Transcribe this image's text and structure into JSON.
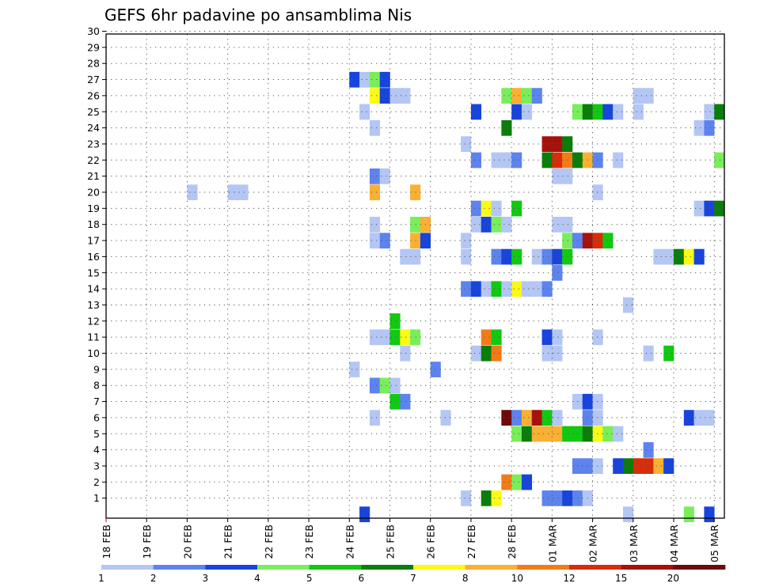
{
  "chart_data": {
    "type": "heatmap",
    "title": "GEFS 6hr padavine po ansamblima Nis",
    "xlabel": "",
    "ylabel": "",
    "x_ticks": [
      "18 FEB",
      "19 FEB",
      "20 FEB",
      "21 FEB",
      "22 FEB",
      "23 FEB",
      "24 FEB",
      "25 FEB",
      "26 FEB",
      "27 FEB",
      "28 FEB",
      "01 MAR",
      "02 MAR",
      "03 MAR",
      "04 MAR",
      "05 MAR"
    ],
    "y_ticks": [
      "1",
      "2",
      "3",
      "4",
      "5",
      "6",
      "7",
      "8",
      "9",
      "10",
      "11",
      "12",
      "13",
      "14",
      "15",
      "16",
      "17",
      "18",
      "19",
      "20",
      "21",
      "22",
      "23",
      "24",
      "25",
      "26",
      "27",
      "28",
      "29",
      "30"
    ],
    "x_unit": "6-hour step",
    "grid": true,
    "legend": {
      "placement": "bottom",
      "thresholds": [
        "1",
        "2",
        "3",
        "4",
        "5",
        "6",
        "7",
        "8",
        "10",
        "12",
        "15",
        "20"
      ],
      "colors": [
        "#b4c6f4",
        "#5d83ee",
        "#1844dc",
        "#79ee5a",
        "#12c812",
        "#0b7d0b",
        "#fafa16",
        "#f9b033",
        "#f27b18",
        "#d62e0a",
        "#a6120a",
        "#6e0a0a"
      ]
    },
    "color_by_class": {
      "1": "#b4c6f4",
      "2": "#5d83ee",
      "3": "#1844dc",
      "4": "#79ee5a",
      "5": "#12c812",
      "6": "#0b7d0b",
      "7": "#fafa16",
      "8": "#f9b033",
      "9": "#f27b18",
      "10": "#d62e0a",
      "11": "#a6120a",
      "12": "#6e0a0a"
    },
    "cells": [
      [
        0,
        25,
        3
      ],
      [
        0,
        51,
        1
      ],
      [
        0,
        57,
        4
      ],
      [
        0,
        59,
        3
      ],
      [
        1,
        35,
        1
      ],
      [
        1,
        37,
        6
      ],
      [
        1,
        38,
        7
      ],
      [
        1,
        43,
        2
      ],
      [
        1,
        44,
        2
      ],
      [
        1,
        45,
        3
      ],
      [
        1,
        46,
        2
      ],
      [
        1,
        47,
        1
      ],
      [
        2,
        39,
        9
      ],
      [
        2,
        40,
        4
      ],
      [
        2,
        41,
        3
      ],
      [
        3,
        46,
        2
      ],
      [
        3,
        47,
        2
      ],
      [
        3,
        48,
        1
      ],
      [
        3,
        50,
        3
      ],
      [
        3,
        51,
        6
      ],
      [
        3,
        52,
        10
      ],
      [
        3,
        53,
        10
      ],
      [
        3,
        54,
        8
      ],
      [
        3,
        55,
        3
      ],
      [
        4,
        53,
        2
      ],
      [
        5,
        40,
        4
      ],
      [
        5,
        41,
        6
      ],
      [
        5,
        42,
        8
      ],
      [
        5,
        43,
        8
      ],
      [
        5,
        44,
        8
      ],
      [
        5,
        45,
        5
      ],
      [
        5,
        46,
        5
      ],
      [
        5,
        47,
        6
      ],
      [
        5,
        48,
        7
      ],
      [
        5,
        49,
        4
      ],
      [
        5,
        50,
        1
      ],
      [
        6,
        26,
        1
      ],
      [
        6,
        33,
        1
      ],
      [
        6,
        39,
        12
      ],
      [
        6,
        40,
        2
      ],
      [
        6,
        41,
        8
      ],
      [
        6,
        42,
        11
      ],
      [
        6,
        43,
        5
      ],
      [
        6,
        44,
        1
      ],
      [
        6,
        47,
        2
      ],
      [
        6,
        48,
        1
      ],
      [
        6,
        57,
        3
      ],
      [
        6,
        58,
        1
      ],
      [
        6,
        59,
        1
      ],
      [
        7,
        28,
        5
      ],
      [
        7,
        29,
        2
      ],
      [
        7,
        46,
        1
      ],
      [
        7,
        47,
        3
      ],
      [
        7,
        48,
        1
      ],
      [
        8,
        26,
        2
      ],
      [
        8,
        27,
        4
      ],
      [
        8,
        28,
        1
      ],
      [
        9,
        24,
        1
      ],
      [
        9,
        32,
        2
      ],
      [
        10,
        29,
        1
      ],
      [
        10,
        36,
        1
      ],
      [
        10,
        37,
        6
      ],
      [
        10,
        38,
        9
      ],
      [
        10,
        43,
        1
      ],
      [
        10,
        44,
        1
      ],
      [
        10,
        53,
        1
      ],
      [
        10,
        55,
        5
      ],
      [
        11,
        26,
        1
      ],
      [
        11,
        27,
        1
      ],
      [
        11,
        28,
        5
      ],
      [
        11,
        29,
        7
      ],
      [
        11,
        30,
        4
      ],
      [
        11,
        37,
        9
      ],
      [
        11,
        38,
        5
      ],
      [
        11,
        43,
        3
      ],
      [
        11,
        44,
        1
      ],
      [
        11,
        48,
        1
      ],
      [
        12,
        28,
        5
      ],
      [
        13,
        51,
        1
      ],
      [
        14,
        35,
        2
      ],
      [
        14,
        36,
        3
      ],
      [
        14,
        37,
        1
      ],
      [
        14,
        38,
        5
      ],
      [
        14,
        39,
        1
      ],
      [
        14,
        40,
        7
      ],
      [
        14,
        41,
        1
      ],
      [
        14,
        42,
        1
      ],
      [
        14,
        43,
        2
      ],
      [
        15,
        44,
        2
      ],
      [
        16,
        29,
        1
      ],
      [
        16,
        30,
        1
      ],
      [
        16,
        35,
        1
      ],
      [
        16,
        38,
        2
      ],
      [
        16,
        39,
        3
      ],
      [
        16,
        40,
        5
      ],
      [
        16,
        42,
        1
      ],
      [
        16,
        43,
        2
      ],
      [
        16,
        44,
        3
      ],
      [
        16,
        45,
        5
      ],
      [
        16,
        54,
        1
      ],
      [
        16,
        55,
        1
      ],
      [
        16,
        56,
        6
      ],
      [
        16,
        57,
        7
      ],
      [
        16,
        58,
        3
      ],
      [
        17,
        26,
        1
      ],
      [
        17,
        27,
        2
      ],
      [
        17,
        30,
        8
      ],
      [
        17,
        31,
        3
      ],
      [
        17,
        35,
        1
      ],
      [
        17,
        45,
        4
      ],
      [
        17,
        46,
        2
      ],
      [
        17,
        47,
        11
      ],
      [
        17,
        48,
        10
      ],
      [
        17,
        49,
        5
      ],
      [
        18,
        26,
        1
      ],
      [
        18,
        30,
        4
      ],
      [
        18,
        31,
        8
      ],
      [
        18,
        36,
        1
      ],
      [
        18,
        37,
        3
      ],
      [
        18,
        38,
        4
      ],
      [
        18,
        39,
        1
      ],
      [
        18,
        44,
        1
      ],
      [
        18,
        45,
        1
      ],
      [
        19,
        36,
        2
      ],
      [
        19,
        37,
        7
      ],
      [
        19,
        38,
        1
      ],
      [
        19,
        40,
        5
      ],
      [
        19,
        58,
        1
      ],
      [
        19,
        59,
        3
      ],
      [
        19,
        60,
        6
      ],
      [
        20,
        8,
        1
      ],
      [
        20,
        12,
        1
      ],
      [
        20,
        13,
        1
      ],
      [
        20,
        26,
        8
      ],
      [
        20,
        30,
        8
      ],
      [
        20,
        48,
        1
      ],
      [
        21,
        26,
        2
      ],
      [
        21,
        27,
        1
      ],
      [
        21,
        44,
        1
      ],
      [
        21,
        45,
        1
      ],
      [
        22,
        36,
        2
      ],
      [
        22,
        38,
        1
      ],
      [
        22,
        39,
        1
      ],
      [
        22,
        40,
        2
      ],
      [
        22,
        43,
        6
      ],
      [
        22,
        44,
        10
      ],
      [
        22,
        45,
        9
      ],
      [
        22,
        46,
        6
      ],
      [
        22,
        47,
        8
      ],
      [
        22,
        48,
        2
      ],
      [
        22,
        50,
        1
      ],
      [
        22,
        60,
        4
      ],
      [
        23,
        35,
        1
      ],
      [
        23,
        43,
        11
      ],
      [
        23,
        44,
        11
      ],
      [
        23,
        45,
        6
      ],
      [
        24,
        26,
        1
      ],
      [
        24,
        39,
        6
      ],
      [
        24,
        58,
        1
      ],
      [
        24,
        59,
        2
      ],
      [
        25,
        25,
        1
      ],
      [
        25,
        36,
        3
      ],
      [
        25,
        40,
        3
      ],
      [
        25,
        41,
        1
      ],
      [
        25,
        46,
        4
      ],
      [
        25,
        47,
        6
      ],
      [
        25,
        48,
        5
      ],
      [
        25,
        49,
        3
      ],
      [
        25,
        50,
        1
      ],
      [
        25,
        52,
        1
      ],
      [
        25,
        59,
        1
      ],
      [
        25,
        60,
        6
      ],
      [
        26,
        26,
        7
      ],
      [
        26,
        27,
        3
      ],
      [
        26,
        28,
        1
      ],
      [
        26,
        29,
        1
      ],
      [
        26,
        39,
        4
      ],
      [
        26,
        40,
        8
      ],
      [
        26,
        41,
        4
      ],
      [
        26,
        42,
        2
      ],
      [
        26,
        52,
        1
      ],
      [
        26,
        53,
        1
      ],
      [
        27,
        24,
        3
      ],
      [
        27,
        25,
        1
      ],
      [
        27,
        26,
        4
      ],
      [
        27,
        27,
        3
      ]
    ]
  }
}
